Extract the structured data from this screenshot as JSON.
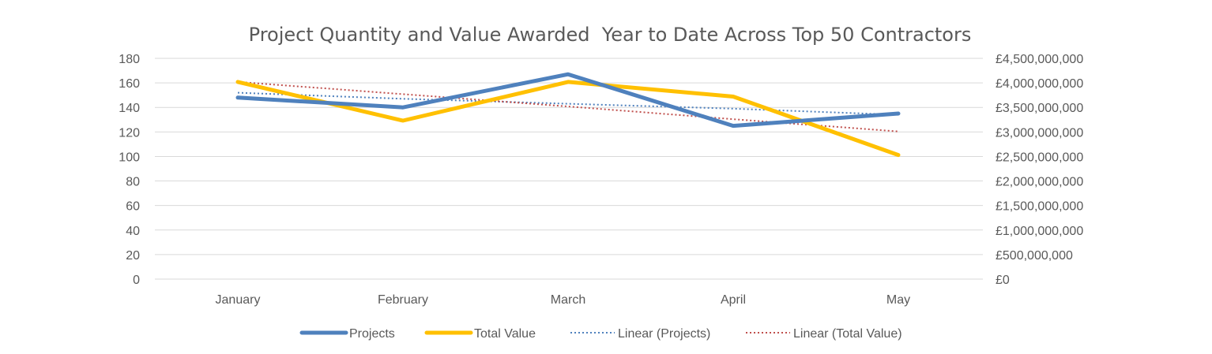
{
  "chart_data": {
    "type": "line",
    "title": "Project Quantity and Value Awarded  Year to Date Across Top 50 Contractors",
    "categories": [
      "January",
      "February",
      "March",
      "April",
      "May"
    ],
    "y_left": {
      "range": [
        0,
        180
      ],
      "ticks": [
        0,
        20,
        40,
        60,
        80,
        100,
        120,
        140,
        160,
        180
      ],
      "tick_labels": [
        "0",
        "20",
        "40",
        "60",
        "80",
        "100",
        "120",
        "140",
        "160",
        "180"
      ]
    },
    "y_right": {
      "range": [
        0,
        4500000000
      ],
      "ticks": [
        0,
        500000000,
        1000000000,
        1500000000,
        2000000000,
        2500000000,
        3000000000,
        3500000000,
        4000000000,
        4500000000
      ],
      "tick_labels": [
        "£0",
        "£500,000,000",
        "£1,000,000,000",
        "£1,500,000,000",
        "£2,000,000,000",
        "£2,500,000,000",
        "£3,000,000,000",
        "£3,500,000,000",
        "£4,000,000,000",
        "£4,500,000,000"
      ]
    },
    "series": [
      {
        "name": "Projects",
        "axis": "left",
        "style": "solid",
        "color": "#4f81bd",
        "values": [
          148,
          140,
          167,
          125,
          135
        ]
      },
      {
        "name": "Total Value",
        "axis": "right",
        "style": "solid",
        "color": "#ffc000",
        "values": [
          4020000000,
          3230000000,
          4020000000,
          3720000000,
          2530000000
        ]
      },
      {
        "name": "Linear (Projects)",
        "axis": "left",
        "style": "dotted",
        "color": "#4f81bd",
        "values": [
          152,
          147,
          143,
          139,
          134
        ]
      },
      {
        "name": "Linear (Total Value)",
        "axis": "right",
        "style": "dotted",
        "color": "#c0504d",
        "values": [
          4020000000,
          3770000000,
          3520000000,
          3260000000,
          3010000000
        ]
      }
    ],
    "grid": true,
    "legend_position": "bottom"
  }
}
